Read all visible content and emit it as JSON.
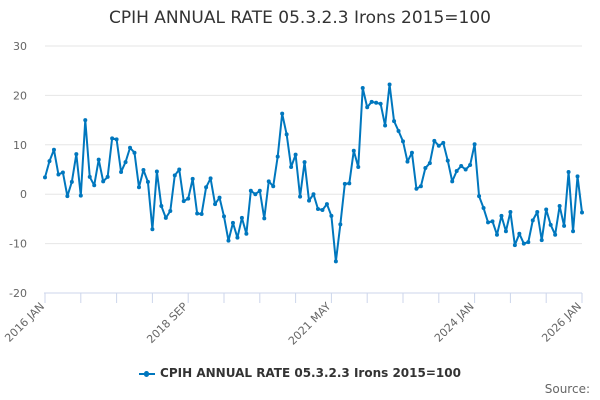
{
  "chart_data": {
    "type": "line",
    "title": "CPIH ANNUAL RATE 05.3.2.3 Irons 2015=100",
    "xlabel": "",
    "ylabel": "",
    "ylim": [
      -20,
      30
    ],
    "yticks": [
      30,
      20,
      10,
      0,
      -10,
      -20
    ],
    "xtick_labels": [
      "2016 JAN",
      "2018 SEP",
      "2021 MAY",
      "2024 JAN",
      "2026 JAN"
    ],
    "x_range": [
      "2016 JAN",
      "2026 JAN"
    ],
    "frequency": "monthly",
    "grid": true,
    "legend_position": "bottom",
    "color": "#0077be",
    "series": [
      {
        "name": "CPIH ANNUAL RATE 05.3.2.3 Irons 2015=100",
        "values": [
          3.4,
          6.7,
          9.0,
          4.0,
          4.4,
          -0.4,
          2.5,
          8.1,
          -0.3,
          15.0,
          3.5,
          1.8,
          7.0,
          2.6,
          3.5,
          11.3,
          11.1,
          4.5,
          6.5,
          9.4,
          8.4,
          1.4,
          4.9,
          2.5,
          -7.1,
          4.6,
          -2.4,
          -4.8,
          -3.4,
          3.8,
          5.0,
          -1.4,
          -0.9,
          3.1,
          -3.9,
          -4.0,
          1.4,
          3.2,
          -2.0,
          -0.7,
          -4.5,
          -9.4,
          -5.8,
          -8.8,
          -4.8,
          -8.0,
          0.7,
          0.0,
          0.7,
          -4.9,
          2.6,
          1.6,
          7.6,
          16.3,
          12.1,
          5.5,
          8.0,
          -0.5,
          6.5,
          -1.3,
          0.0,
          -3.0,
          -3.2,
          -2.0,
          -4.4,
          -13.6,
          -6.1,
          2.1,
          2.2,
          8.8,
          5.5,
          21.5,
          17.6,
          18.7,
          18.5,
          18.3,
          13.9,
          22.2,
          14.8,
          12.8,
          10.7,
          6.6,
          8.4,
          1.1,
          1.6,
          5.3,
          6.3,
          10.8,
          9.8,
          10.4,
          6.8,
          2.6,
          4.7,
          5.7,
          5.0,
          5.9,
          10.1,
          -0.4,
          -2.8,
          -5.7,
          -5.5,
          -8.2,
          -4.4,
          -7.5,
          -3.6,
          -10.3,
          -8.0,
          -10.0,
          -9.7,
          -5.3,
          -3.6,
          -9.3,
          -3.1,
          -6.2,
          -8.2,
          -2.4,
          -6.4,
          4.5,
          -7.5,
          3.6,
          -3.7
        ]
      }
    ]
  },
  "source_label": "Source:"
}
